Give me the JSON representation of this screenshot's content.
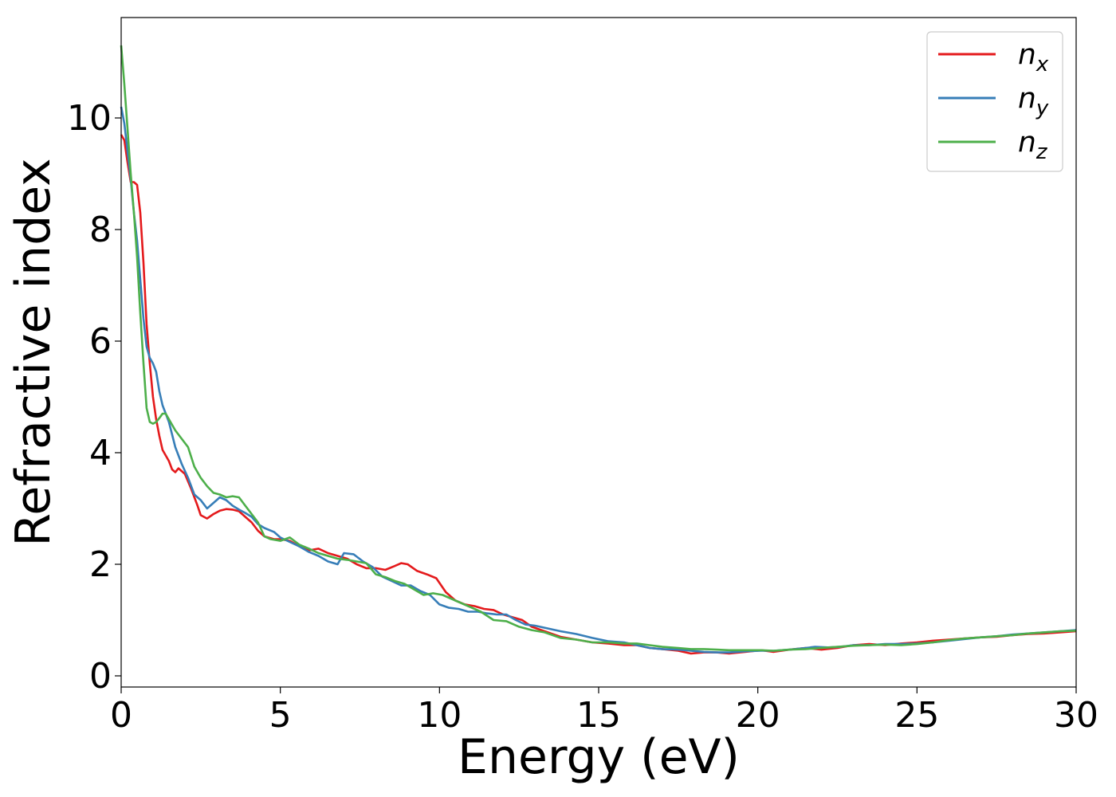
{
  "chart_data": {
    "type": "line",
    "title": "",
    "xlabel": "Energy (eV)",
    "ylabel": "Refractive index",
    "xlim": [
      0,
      30
    ],
    "ylim": [
      -0.2,
      11.8
    ],
    "xticks": [
      0,
      5,
      10,
      15,
      20,
      25,
      30
    ],
    "yticks": [
      0,
      2,
      4,
      6,
      8,
      10
    ],
    "grid": false,
    "legend_position": "top-right",
    "series": [
      {
        "name": "n",
        "subscript": "x",
        "color": "#e41a1c",
        "points": [
          [
            0.0,
            9.7
          ],
          [
            0.1,
            9.6
          ],
          [
            0.2,
            9.2
          ],
          [
            0.3,
            8.85
          ],
          [
            0.4,
            8.85
          ],
          [
            0.5,
            8.8
          ],
          [
            0.6,
            8.3
          ],
          [
            0.7,
            7.4
          ],
          [
            0.8,
            6.3
          ],
          [
            0.9,
            5.6
          ],
          [
            1.0,
            5.0
          ],
          [
            1.1,
            4.6
          ],
          [
            1.2,
            4.3
          ],
          [
            1.3,
            4.05
          ],
          [
            1.4,
            3.95
          ],
          [
            1.5,
            3.85
          ],
          [
            1.6,
            3.7
          ],
          [
            1.7,
            3.65
          ],
          [
            1.8,
            3.72
          ],
          [
            2.0,
            3.62
          ],
          [
            2.2,
            3.35
          ],
          [
            2.4,
            3.05
          ],
          [
            2.5,
            2.88
          ],
          [
            2.7,
            2.82
          ],
          [
            2.9,
            2.9
          ],
          [
            3.1,
            2.96
          ],
          [
            3.3,
            2.99
          ],
          [
            3.5,
            2.98
          ],
          [
            3.7,
            2.95
          ],
          [
            3.9,
            2.85
          ],
          [
            4.1,
            2.75
          ],
          [
            4.3,
            2.6
          ],
          [
            4.5,
            2.5
          ],
          [
            4.8,
            2.45
          ],
          [
            5.0,
            2.45
          ],
          [
            5.3,
            2.42
          ],
          [
            5.6,
            2.32
          ],
          [
            5.9,
            2.25
          ],
          [
            6.2,
            2.28
          ],
          [
            6.5,
            2.2
          ],
          [
            6.8,
            2.15
          ],
          [
            7.1,
            2.1
          ],
          [
            7.4,
            2.0
          ],
          [
            7.7,
            1.93
          ],
          [
            8.0,
            1.93
          ],
          [
            8.3,
            1.9
          ],
          [
            8.6,
            1.97
          ],
          [
            8.8,
            2.02
          ],
          [
            9.0,
            2.0
          ],
          [
            9.3,
            1.88
          ],
          [
            9.6,
            1.82
          ],
          [
            9.9,
            1.75
          ],
          [
            10.2,
            1.5
          ],
          [
            10.5,
            1.35
          ],
          [
            10.8,
            1.28
          ],
          [
            11.1,
            1.25
          ],
          [
            11.4,
            1.2
          ],
          [
            11.7,
            1.18
          ],
          [
            12.0,
            1.1
          ],
          [
            12.3,
            1.05
          ],
          [
            12.6,
            1.0
          ],
          [
            12.9,
            0.88
          ],
          [
            13.3,
            0.8
          ],
          [
            13.8,
            0.7
          ],
          [
            14.3,
            0.65
          ],
          [
            14.8,
            0.6
          ],
          [
            15.3,
            0.58
          ],
          [
            15.8,
            0.55
          ],
          [
            16.2,
            0.55
          ],
          [
            16.6,
            0.5
          ],
          [
            17.0,
            0.48
          ],
          [
            17.5,
            0.45
          ],
          [
            17.9,
            0.4
          ],
          [
            18.3,
            0.42
          ],
          [
            18.7,
            0.42
          ],
          [
            19.1,
            0.4
          ],
          [
            19.6,
            0.43
          ],
          [
            20.1,
            0.46
          ],
          [
            20.5,
            0.43
          ],
          [
            21.0,
            0.47
          ],
          [
            21.5,
            0.5
          ],
          [
            22.0,
            0.47
          ],
          [
            22.5,
            0.5
          ],
          [
            23.0,
            0.55
          ],
          [
            23.5,
            0.57
          ],
          [
            24.0,
            0.55
          ],
          [
            24.5,
            0.58
          ],
          [
            25.0,
            0.6
          ],
          [
            25.5,
            0.63
          ],
          [
            26.0,
            0.65
          ],
          [
            26.5,
            0.67
          ],
          [
            27.0,
            0.69
          ],
          [
            27.5,
            0.7
          ],
          [
            28.0,
            0.73
          ],
          [
            28.5,
            0.75
          ],
          [
            29.0,
            0.76
          ],
          [
            29.5,
            0.78
          ],
          [
            30.0,
            0.8
          ]
        ]
      },
      {
        "name": "n",
        "subscript": "y",
        "color": "#377eb8",
        "points": [
          [
            0.0,
            10.2
          ],
          [
            0.1,
            9.9
          ],
          [
            0.2,
            9.4
          ],
          [
            0.3,
            8.9
          ],
          [
            0.4,
            8.3
          ],
          [
            0.5,
            7.8
          ],
          [
            0.6,
            7.1
          ],
          [
            0.7,
            6.4
          ],
          [
            0.8,
            5.9
          ],
          [
            0.9,
            5.7
          ],
          [
            1.0,
            5.6
          ],
          [
            1.1,
            5.45
          ],
          [
            1.2,
            5.1
          ],
          [
            1.3,
            4.85
          ],
          [
            1.5,
            4.55
          ],
          [
            1.7,
            4.1
          ],
          [
            1.9,
            3.8
          ],
          [
            2.1,
            3.55
          ],
          [
            2.3,
            3.25
          ],
          [
            2.5,
            3.15
          ],
          [
            2.7,
            3.0
          ],
          [
            2.9,
            3.1
          ],
          [
            3.1,
            3.2
          ],
          [
            3.3,
            3.15
          ],
          [
            3.5,
            3.05
          ],
          [
            3.7,
            2.98
          ],
          [
            3.9,
            2.92
          ],
          [
            4.1,
            2.85
          ],
          [
            4.3,
            2.72
          ],
          [
            4.5,
            2.65
          ],
          [
            4.8,
            2.58
          ],
          [
            5.0,
            2.48
          ],
          [
            5.3,
            2.4
          ],
          [
            5.6,
            2.32
          ],
          [
            5.9,
            2.22
          ],
          [
            6.2,
            2.15
          ],
          [
            6.5,
            2.05
          ],
          [
            6.8,
            2.0
          ],
          [
            7.0,
            2.2
          ],
          [
            7.3,
            2.18
          ],
          [
            7.6,
            2.05
          ],
          [
            7.9,
            1.95
          ],
          [
            8.2,
            1.78
          ],
          [
            8.5,
            1.7
          ],
          [
            8.8,
            1.62
          ],
          [
            9.1,
            1.62
          ],
          [
            9.4,
            1.52
          ],
          [
            9.7,
            1.45
          ],
          [
            10.0,
            1.28
          ],
          [
            10.3,
            1.22
          ],
          [
            10.6,
            1.2
          ],
          [
            10.9,
            1.15
          ],
          [
            11.2,
            1.15
          ],
          [
            11.5,
            1.12
          ],
          [
            11.8,
            1.1
          ],
          [
            12.1,
            1.1
          ],
          [
            12.4,
            1.0
          ],
          [
            12.7,
            0.92
          ],
          [
            13.0,
            0.9
          ],
          [
            13.4,
            0.85
          ],
          [
            13.8,
            0.8
          ],
          [
            14.3,
            0.75
          ],
          [
            14.8,
            0.68
          ],
          [
            15.3,
            0.62
          ],
          [
            15.8,
            0.6
          ],
          [
            16.2,
            0.55
          ],
          [
            16.6,
            0.5
          ],
          [
            17.0,
            0.48
          ],
          [
            17.5,
            0.47
          ],
          [
            17.9,
            0.45
          ],
          [
            18.3,
            0.43
          ],
          [
            18.7,
            0.42
          ],
          [
            19.1,
            0.42
          ],
          [
            19.6,
            0.44
          ],
          [
            20.1,
            0.45
          ],
          [
            20.5,
            0.45
          ],
          [
            21.0,
            0.47
          ],
          [
            21.5,
            0.5
          ],
          [
            21.8,
            0.52
          ],
          [
            22.2,
            0.51
          ],
          [
            22.6,
            0.52
          ],
          [
            23.0,
            0.55
          ],
          [
            23.5,
            0.55
          ],
          [
            24.0,
            0.57
          ],
          [
            24.5,
            0.57
          ],
          [
            25.0,
            0.58
          ],
          [
            25.5,
            0.6
          ],
          [
            26.0,
            0.63
          ],
          [
            26.5,
            0.66
          ],
          [
            27.0,
            0.69
          ],
          [
            27.5,
            0.71
          ],
          [
            28.0,
            0.74
          ],
          [
            28.5,
            0.76
          ],
          [
            29.0,
            0.78
          ],
          [
            29.5,
            0.8
          ],
          [
            30.0,
            0.82
          ]
        ]
      },
      {
        "name": "n",
        "subscript": "z",
        "color": "#4daf4a",
        "points": [
          [
            0.0,
            11.3
          ],
          [
            0.1,
            10.6
          ],
          [
            0.2,
            9.8
          ],
          [
            0.3,
            9.0
          ],
          [
            0.4,
            8.3
          ],
          [
            0.5,
            7.5
          ],
          [
            0.6,
            6.5
          ],
          [
            0.7,
            5.6
          ],
          [
            0.8,
            4.8
          ],
          [
            0.9,
            4.55
          ],
          [
            1.0,
            4.52
          ],
          [
            1.1,
            4.55
          ],
          [
            1.2,
            4.62
          ],
          [
            1.3,
            4.7
          ],
          [
            1.4,
            4.7
          ],
          [
            1.5,
            4.6
          ],
          [
            1.7,
            4.4
          ],
          [
            1.9,
            4.25
          ],
          [
            2.1,
            4.1
          ],
          [
            2.3,
            3.75
          ],
          [
            2.5,
            3.55
          ],
          [
            2.7,
            3.4
          ],
          [
            2.9,
            3.28
          ],
          [
            3.1,
            3.25
          ],
          [
            3.3,
            3.2
          ],
          [
            3.5,
            3.22
          ],
          [
            3.7,
            3.2
          ],
          [
            3.9,
            3.05
          ],
          [
            4.1,
            2.9
          ],
          [
            4.3,
            2.75
          ],
          [
            4.5,
            2.5
          ],
          [
            4.7,
            2.45
          ],
          [
            5.0,
            2.42
          ],
          [
            5.3,
            2.48
          ],
          [
            5.6,
            2.35
          ],
          [
            5.9,
            2.28
          ],
          [
            6.2,
            2.2
          ],
          [
            6.5,
            2.15
          ],
          [
            6.8,
            2.1
          ],
          [
            7.1,
            2.08
          ],
          [
            7.4,
            2.05
          ],
          [
            7.7,
            2.02
          ],
          [
            8.0,
            1.82
          ],
          [
            8.3,
            1.77
          ],
          [
            8.6,
            1.7
          ],
          [
            8.9,
            1.65
          ],
          [
            9.2,
            1.55
          ],
          [
            9.5,
            1.45
          ],
          [
            9.8,
            1.48
          ],
          [
            10.1,
            1.45
          ],
          [
            10.5,
            1.35
          ],
          [
            10.9,
            1.25
          ],
          [
            11.3,
            1.15
          ],
          [
            11.7,
            1.0
          ],
          [
            12.1,
            0.98
          ],
          [
            12.5,
            0.88
          ],
          [
            12.9,
            0.82
          ],
          [
            13.3,
            0.78
          ],
          [
            13.8,
            0.68
          ],
          [
            14.3,
            0.65
          ],
          [
            14.8,
            0.6
          ],
          [
            15.3,
            0.6
          ],
          [
            15.8,
            0.58
          ],
          [
            16.2,
            0.58
          ],
          [
            16.6,
            0.55
          ],
          [
            17.0,
            0.52
          ],
          [
            17.5,
            0.5
          ],
          [
            17.9,
            0.48
          ],
          [
            18.3,
            0.48
          ],
          [
            18.7,
            0.47
          ],
          [
            19.1,
            0.46
          ],
          [
            19.6,
            0.46
          ],
          [
            20.1,
            0.46
          ],
          [
            20.5,
            0.45
          ],
          [
            21.0,
            0.47
          ],
          [
            21.5,
            0.48
          ],
          [
            22.0,
            0.5
          ],
          [
            22.5,
            0.52
          ],
          [
            23.0,
            0.54
          ],
          [
            23.5,
            0.55
          ],
          [
            24.0,
            0.56
          ],
          [
            24.5,
            0.55
          ],
          [
            25.0,
            0.57
          ],
          [
            25.5,
            0.6
          ],
          [
            26.0,
            0.64
          ],
          [
            26.5,
            0.67
          ],
          [
            27.0,
            0.69
          ],
          [
            27.5,
            0.71
          ],
          [
            28.0,
            0.73
          ],
          [
            28.5,
            0.76
          ],
          [
            29.0,
            0.78
          ],
          [
            29.5,
            0.8
          ],
          [
            30.0,
            0.81
          ]
        ]
      }
    ]
  }
}
